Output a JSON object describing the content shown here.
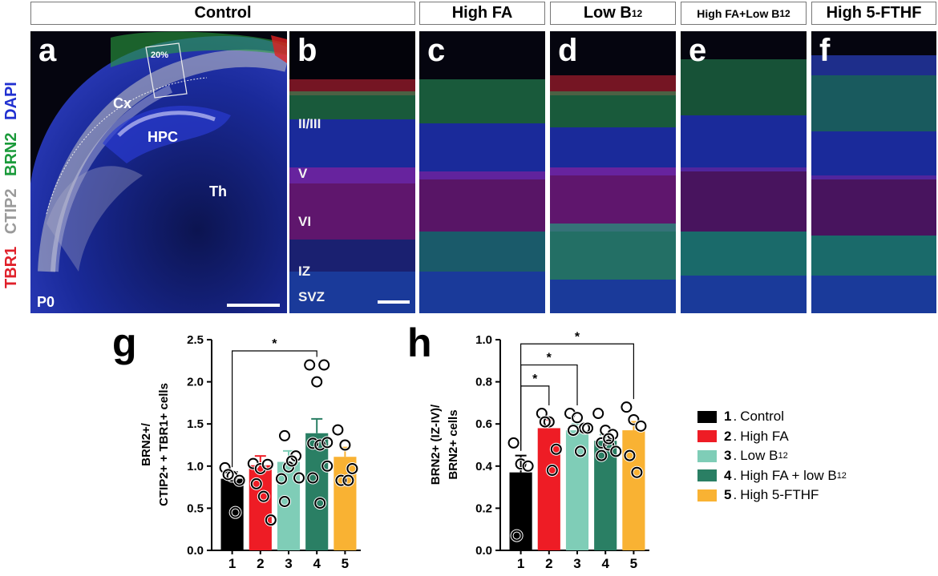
{
  "headers": {
    "control": "Control",
    "high_fa": "High FA",
    "low_b12_pre": "Low B",
    "low_b12_sub": "12",
    "combo_pre": "High FA+Low B",
    "combo_sub": "12",
    "high_5fthf": "High 5-FTHF"
  },
  "side_labels": {
    "tbr1": "TBR1",
    "ctip2": "CTIP2",
    "brn2": "BRN2",
    "dapi": "DAPI"
  },
  "panels": {
    "a": {
      "label": "a",
      "p0": "P0",
      "cx": "Cx",
      "hpc": "HPC",
      "th": "Th",
      "box": "20%"
    },
    "b": {
      "label": "b",
      "layers": [
        "II/III",
        "V",
        "VI",
        "IZ",
        "SVZ"
      ]
    },
    "c": {
      "label": "c"
    },
    "d": {
      "label": "d"
    },
    "e": {
      "label": "e"
    },
    "f": {
      "label": "f"
    }
  },
  "colors": {
    "black": "#000000",
    "red": "#ee1c25",
    "light_teal": "#7fcdb7",
    "dark_teal": "#2a7f64",
    "orange": "#f9b233"
  },
  "chart_g": {
    "label": "g",
    "ylabel_line1": "BRN2+/",
    "ylabel_line2": "CTIP2+ + TBR1+ cells",
    "sig": "*"
  },
  "chart_h": {
    "label": "h",
    "ylabel_line1": "BRN2+ (IZ-IV)/",
    "ylabel_line2": "BRN2+ cells",
    "sig": "*"
  },
  "legend": {
    "items": [
      {
        "num": "1",
        "text": "Control",
        "sub": ""
      },
      {
        "num": "2",
        "text": "High FA",
        "sub": ""
      },
      {
        "num": "3",
        "text": "Low B",
        "sub": "12"
      },
      {
        "num": "4",
        "text": "High FA + low B",
        "sub": "12"
      },
      {
        "num": "5",
        "text": "High 5-FTHF",
        "sub": ""
      }
    ]
  },
  "chart_data": [
    {
      "type": "bar",
      "title": "",
      "categories": [
        "1",
        "2",
        "3",
        "4",
        "5"
      ],
      "values": [
        0.85,
        1.01,
        1.05,
        1.39,
        1.11
      ],
      "errors": [
        0.08,
        0.11,
        0.13,
        0.17,
        0.11
      ],
      "ylim": [
        0,
        2.5
      ],
      "yticks": [
        "0.0",
        "0.5",
        "1.0",
        "1.5",
        "2.0",
        "2.5"
      ],
      "points": [
        [
          0.98,
          0.88,
          0.83,
          0.9,
          0.45
        ],
        [
          1.03,
          0.97,
          1.02,
          0.79,
          0.64,
          0.36
        ],
        [
          0.85,
          0.99,
          1.12,
          0.58,
          1.06,
          0.86,
          1.36
        ],
        [
          2.2,
          2.0,
          2.2,
          1.27,
          1.25,
          1.0,
          0.86,
          0.56,
          1.28
        ],
        [
          1.43,
          1.25,
          0.97,
          0.83,
          0.83
        ]
      ],
      "significance": [
        {
          "from": "1",
          "to": "4",
          "label": "*"
        }
      ]
    },
    {
      "type": "bar",
      "title": "",
      "categories": [
        "1",
        "2",
        "3",
        "4",
        "5"
      ],
      "values": [
        0.37,
        0.58,
        0.57,
        0.52,
        0.57
      ],
      "errors": [
        0.08,
        0.04,
        0.03,
        0.03,
        0.04
      ],
      "ylim": [
        0,
        1.0
      ],
      "yticks": [
        "0.0",
        "0.2",
        "0.4",
        "0.6",
        "0.8",
        "1.0"
      ],
      "points": [
        [
          0.51,
          0.41,
          0.4,
          0.07
        ],
        [
          0.65,
          0.61,
          0.48,
          0.61,
          0.38
        ],
        [
          0.65,
          0.63,
          0.58,
          0.57,
          0.47,
          0.58
        ],
        [
          0.65,
          0.57,
          0.55,
          0.51,
          0.5,
          0.47,
          0.45,
          0.53
        ],
        [
          0.68,
          0.62,
          0.59,
          0.45,
          0.37
        ]
      ],
      "significance": [
        {
          "from": "1",
          "to": "2",
          "label": "*"
        },
        {
          "from": "1",
          "to": "3",
          "label": "*"
        },
        {
          "from": "1",
          "to": "5",
          "label": "*"
        }
      ]
    }
  ]
}
